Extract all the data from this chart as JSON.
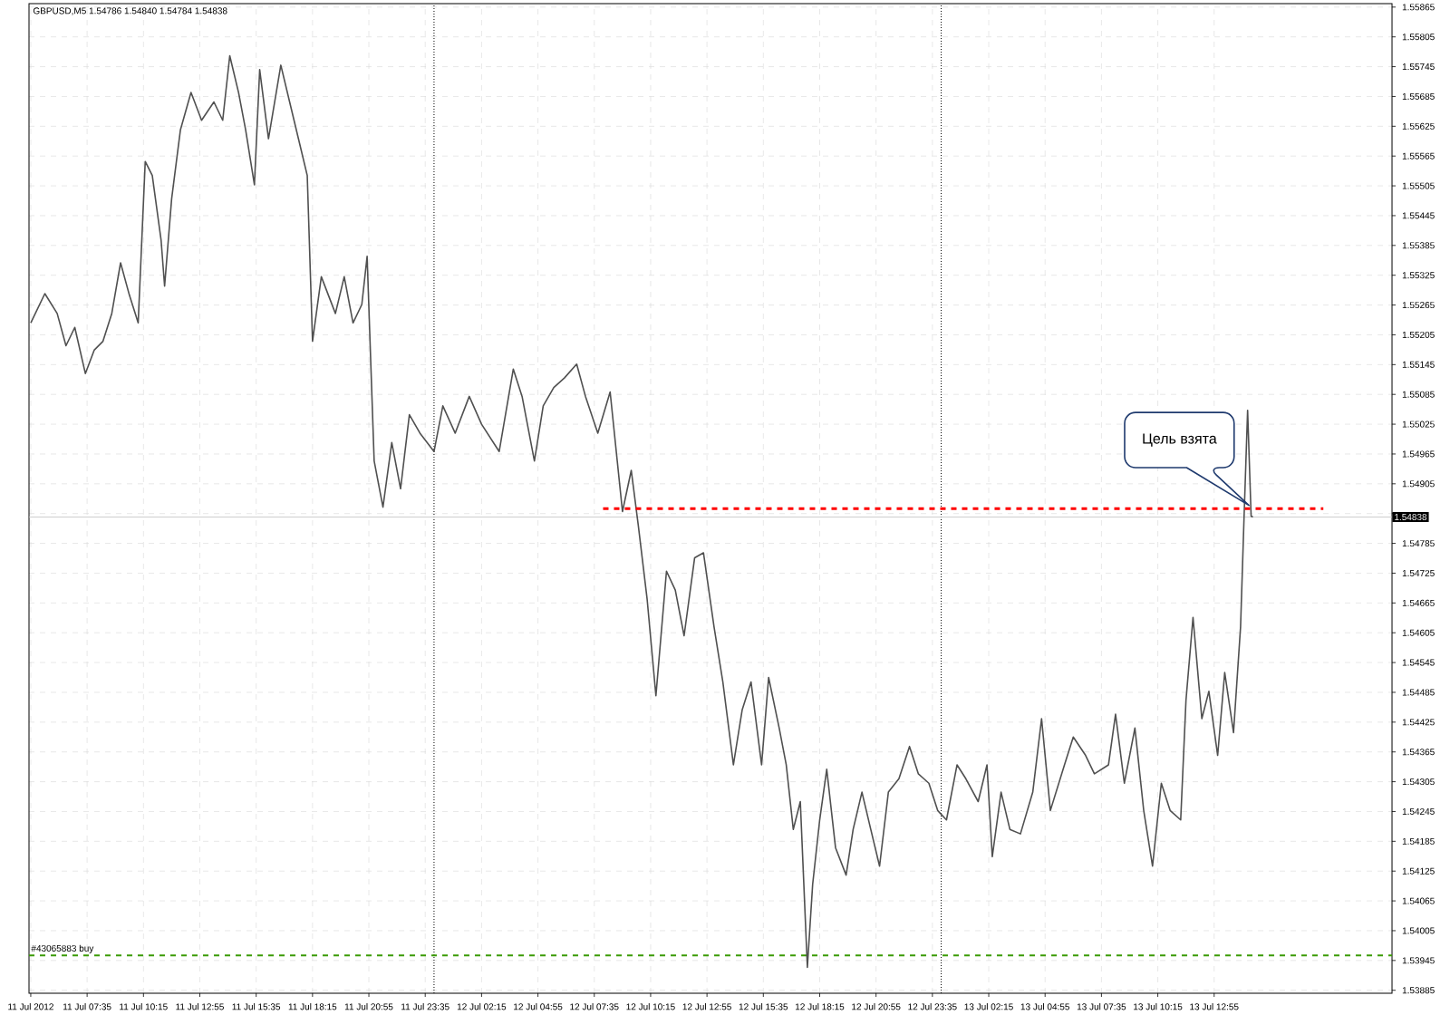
{
  "chart_data": {
    "type": "line",
    "title": "GBPUSD,M5  1.54786 1.54840 1.54784 1.54838",
    "xlim": [
      "2012-07-11T04:50",
      "2012-07-13T21:20"
    ],
    "xticks": [
      {
        "value": "2012-07-11T04:55",
        "label": "11 Jul 2012"
      },
      {
        "value": "2012-07-11T07:35",
        "label": "11 Jul 07:35"
      },
      {
        "value": "2012-07-11T10:15",
        "label": "11 Jul 10:15"
      },
      {
        "value": "2012-07-11T12:55",
        "label": "11 Jul 12:55"
      },
      {
        "value": "2012-07-11T15:35",
        "label": "11 Jul 15:35"
      },
      {
        "value": "2012-07-11T18:15",
        "label": "11 Jul 18:15"
      },
      {
        "value": "2012-07-11T20:55",
        "label": "11 Jul 20:55"
      },
      {
        "value": "2012-07-11T23:35",
        "label": "11 Jul 23:35"
      },
      {
        "value": "2012-07-12T02:15",
        "label": "12 Jul 02:15"
      },
      {
        "value": "2012-07-12T04:55",
        "label": "12 Jul 04:55"
      },
      {
        "value": "2012-07-12T07:35",
        "label": "12 Jul 07:35"
      },
      {
        "value": "2012-07-12T10:15",
        "label": "12 Jul 10:15"
      },
      {
        "value": "2012-07-12T12:55",
        "label": "12 Jul 12:55"
      },
      {
        "value": "2012-07-12T15:35",
        "label": "12 Jul 15:35"
      },
      {
        "value": "2012-07-12T18:15",
        "label": "12 Jul 18:15"
      },
      {
        "value": "2012-07-12T20:55",
        "label": "12 Jul 20:55"
      },
      {
        "value": "2012-07-12T23:35",
        "label": "12 Jul 23:35"
      },
      {
        "value": "2012-07-13T02:15",
        "label": "13 Jul 02:15"
      },
      {
        "value": "2012-07-13T04:55",
        "label": "13 Jul 04:55"
      },
      {
        "value": "2012-07-13T07:35",
        "label": "13 Jul 07:35"
      },
      {
        "value": "2012-07-13T10:15",
        "label": "13 Jul 10:15"
      },
      {
        "value": "2012-07-13T12:55",
        "label": "13 Jul 12:55"
      }
    ],
    "ylim": [
      1.53879,
      1.55872
    ],
    "yticks": [
      1.53885,
      1.53945,
      1.54005,
      1.54065,
      1.54125,
      1.54185,
      1.54245,
      1.54305,
      1.54365,
      1.54425,
      1.54485,
      1.54545,
      1.54605,
      1.54665,
      1.54725,
      1.54785,
      {
        "value": 1.54845,
        "label": null
      },
      1.54905,
      1.54965,
      1.55025,
      1.55085,
      1.55145,
      1.55205,
      1.55265,
      1.55325,
      1.55385,
      1.55445,
      1.55505,
      1.55565,
      1.55625,
      1.55685,
      1.55745,
      1.55805,
      1.55865
    ],
    "grid": true,
    "series": [
      {
        "color": "#505050",
        "line_style": "solid",
        "x": [
          "2012-07-11T04:55",
          "2012-07-11T05:35",
          "2012-07-11T06:10",
          "2012-07-11T06:35",
          "2012-07-11T07:00",
          "2012-07-11T07:30",
          "2012-07-11T07:55",
          "2012-07-11T08:20",
          "2012-07-11T08:45",
          "2012-07-11T09:10",
          "2012-07-11T09:35",
          "2012-07-11T10:00",
          "2012-07-11T10:20",
          "2012-07-11T10:40",
          "2012-07-11T11:05",
          "2012-07-11T11:15",
          "2012-07-11T11:35",
          "2012-07-11T12:00",
          "2012-07-11T12:30",
          "2012-07-11T13:00",
          "2012-07-11T13:35",
          "2012-07-11T14:00",
          "2012-07-11T14:20",
          "2012-07-11T14:45",
          "2012-07-11T15:05",
          "2012-07-11T15:30",
          "2012-07-11T15:45",
          "2012-07-11T16:10",
          "2012-07-11T16:45",
          "2012-07-11T17:10",
          "2012-07-11T17:35",
          "2012-07-11T18:00",
          "2012-07-11T18:15",
          "2012-07-11T18:40",
          "2012-07-11T19:20",
          "2012-07-11T19:45",
          "2012-07-11T20:10",
          "2012-07-11T20:35",
          "2012-07-11T20:50",
          "2012-07-11T21:10",
          "2012-07-11T21:35",
          "2012-07-11T22:00",
          "2012-07-11T22:25",
          "2012-07-11T22:50",
          "2012-07-11T23:20",
          "2012-07-12T00:00",
          "2012-07-12T00:25",
          "2012-07-12T01:00",
          "2012-07-12T01:40",
          "2012-07-12T02:15",
          "2012-07-12T03:05",
          "2012-07-12T03:45",
          "2012-07-12T04:10",
          "2012-07-12T04:45",
          "2012-07-12T05:10",
          "2012-07-12T05:40",
          "2012-07-12T06:10",
          "2012-07-12T06:45",
          "2012-07-12T07:10",
          "2012-07-12T07:45",
          "2012-07-12T08:20",
          "2012-07-12T08:55",
          "2012-07-12T09:20",
          "2012-07-12T09:40",
          "2012-07-12T10:05",
          "2012-07-12T10:30",
          "2012-07-12T11:00",
          "2012-07-12T11:25",
          "2012-07-12T11:50",
          "2012-07-12T12:20",
          "2012-07-12T12:45",
          "2012-07-12T13:15",
          "2012-07-12T13:40",
          "2012-07-12T14:10",
          "2012-07-12T14:35",
          "2012-07-12T15:00",
          "2012-07-12T15:30",
          "2012-07-12T15:50",
          "2012-07-12T16:20",
          "2012-07-12T16:40",
          "2012-07-12T17:00",
          "2012-07-12T17:20",
          "2012-07-12T17:40",
          "2012-07-12T17:55",
          "2012-07-12T18:15",
          "2012-07-12T18:35",
          "2012-07-12T19:00",
          "2012-07-12T19:30",
          "2012-07-12T19:50",
          "2012-07-12T20:15",
          "2012-07-12T20:40",
          "2012-07-12T21:05",
          "2012-07-12T21:30",
          "2012-07-12T22:00",
          "2012-07-12T22:30",
          "2012-07-12T22:55",
          "2012-07-12T23:25",
          "2012-07-12T23:50",
          "2012-07-13T00:15",
          "2012-07-13T00:45",
          "2012-07-13T01:10",
          "2012-07-13T01:45",
          "2012-07-13T02:10",
          "2012-07-13T02:25",
          "2012-07-13T02:50",
          "2012-07-13T03:15",
          "2012-07-13T03:45",
          "2012-07-13T04:20",
          "2012-07-13T04:45",
          "2012-07-13T05:10",
          "2012-07-13T05:50",
          "2012-07-13T06:15",
          "2012-07-13T06:50",
          "2012-07-13T07:15",
          "2012-07-13T07:55",
          "2012-07-13T08:15",
          "2012-07-13T08:40",
          "2012-07-13T09:10",
          "2012-07-13T09:35",
          "2012-07-13T10:00",
          "2012-07-13T10:25",
          "2012-07-13T10:50",
          "2012-07-13T11:20",
          "2012-07-13T11:35",
          "2012-07-13T11:55",
          "2012-07-13T12:20",
          "2012-07-13T12:40",
          "2012-07-13T13:05",
          "2012-07-13T13:25",
          "2012-07-13T13:50",
          "2012-07-13T14:10",
          "2012-07-13T14:20",
          "2012-07-13T14:30",
          "2012-07-13T14:40",
          "2012-07-13T14:45"
        ],
        "values": [
          1.55229,
          1.55288,
          1.55248,
          1.55183,
          1.5522,
          1.55127,
          1.55174,
          1.55192,
          1.55248,
          1.5535,
          1.55285,
          1.55229,
          1.55554,
          1.55526,
          1.55396,
          1.55303,
          1.55479,
          1.55618,
          1.55693,
          1.55637,
          1.55674,
          1.55637,
          1.55767,
          1.55693,
          1.55618,
          1.55507,
          1.55739,
          1.556,
          1.55748,
          1.55674,
          1.556,
          1.55526,
          1.55192,
          1.55322,
          1.55248,
          1.55322,
          1.55229,
          1.55266,
          1.55363,
          1.54951,
          1.54858,
          1.54988,
          1.54895,
          1.55044,
          1.55007,
          1.5497,
          1.55062,
          1.55007,
          1.55081,
          1.55025,
          1.5497,
          1.55136,
          1.55081,
          1.54951,
          1.55062,
          1.55099,
          1.55118,
          1.55146,
          1.55081,
          1.55007,
          1.5509,
          1.54849,
          1.54932,
          1.54821,
          1.54673,
          1.54478,
          1.54729,
          1.54691,
          1.54599,
          1.54756,
          1.54766,
          1.54617,
          1.54506,
          1.54339,
          1.5445,
          1.54506,
          1.54339,
          1.54515,
          1.54413,
          1.54339,
          1.54209,
          1.54265,
          1.53931,
          1.54098,
          1.54228,
          1.5433,
          1.54172,
          1.54117,
          1.54209,
          1.54284,
          1.54209,
          1.54135,
          1.54284,
          1.54311,
          1.54376,
          1.54321,
          1.54302,
          1.54247,
          1.54228,
          1.54339,
          1.54311,
          1.54265,
          1.54339,
          1.54154,
          1.54284,
          1.54209,
          1.542,
          1.54284,
          1.54432,
          1.54247,
          1.54339,
          1.54395,
          1.54358,
          1.54321,
          1.54339,
          1.54441,
          1.54302,
          1.54413,
          1.54247,
          1.54135,
          1.54302,
          1.54247,
          1.54228,
          1.54469,
          1.54636,
          1.54432,
          1.54487,
          1.54358,
          1.54525,
          1.54404,
          1.54617,
          1.5484,
          1.55053,
          1.5484,
          1.54838
        ]
      },
      {
        "color": "#ff0000",
        "line_style": "dashed",
        "x": [
          "2012-07-12T08:00",
          "2012-07-13T18:05"
        ],
        "values": [
          1.54855,
          1.54855
        ]
      }
    ],
    "ref_lines": [
      {
        "axis": "x",
        "value": "2012-07-12T00:00",
        "color": "#000000",
        "line_style": "dotted"
      },
      {
        "axis": "x",
        "value": "2012-07-13T00:00",
        "color": "#000000",
        "line_style": "dotted"
      },
      {
        "axis": "y",
        "value": 1.54838,
        "label": "1.54838",
        "color": "#c0c0c0",
        "line_style": "solid"
      },
      {
        "axis": "y",
        "value": 1.53955,
        "label": "#43065883 buy",
        "color": "#3a9a00",
        "line_style": "dashed"
      }
    ],
    "annotations": [
      "Цель взята"
    ]
  }
}
